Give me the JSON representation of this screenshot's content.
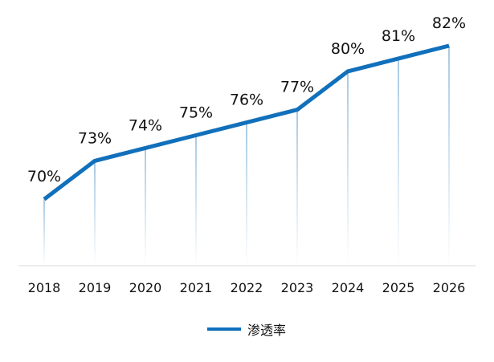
{
  "chart_data": {
    "type": "line",
    "categories": [
      "2018",
      "2019",
      "2020",
      "2021",
      "2022",
      "2023",
      "2024",
      "2025",
      "2026"
    ],
    "series": [
      {
        "name": "渗透率",
        "values": [
          70,
          73,
          74,
          75,
          76,
          77,
          80,
          81,
          82
        ],
        "labels": [
          "70%",
          "73%",
          "74%",
          "75%",
          "76%",
          "77%",
          "80%",
          "81%",
          "82%"
        ]
      }
    ],
    "ylim": [
      64.8,
      82
    ],
    "grid": false,
    "drop_lines": true,
    "legend_position": "bottom-center",
    "title": "",
    "xlabel": "",
    "ylabel": ""
  },
  "colors": {
    "line": "#1170bb",
    "axis": "#d9d9d9",
    "drop_line_top": "#a7c9e3",
    "drop_line_bottom": "#ffffff"
  }
}
